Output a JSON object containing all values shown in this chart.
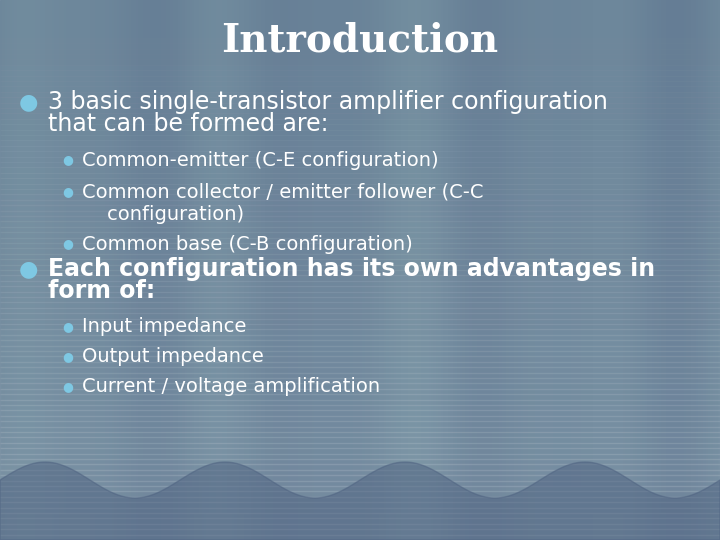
{
  "title": "Introduction",
  "title_color": "#ffffff",
  "title_fontsize": 28,
  "bullet_color": "#7ec8e3",
  "text_color": "#ffffff",
  "bg_base": [
    0.42,
    0.52,
    0.65
  ],
  "main_bullets": [
    {
      "text": "3 basic single-transistor amplifier configuration\nthat can be formed are:",
      "fontsize": 17,
      "bold": false,
      "sub_bullets": [
        "Common-emitter (C-E configuration)",
        "Common collector / emitter follower (C-C\n    configuration)",
        "Common base (C-B configuration)"
      ]
    },
    {
      "text": "Each configuration has its own advantages in\nform of:",
      "fontsize": 17,
      "bold": true,
      "sub_bullets": [
        "Input impedance",
        "Output impedance",
        "Current / voltage amplification"
      ]
    }
  ],
  "sub_bullet_fontsize": 14,
  "figsize": [
    7.2,
    5.4
  ],
  "dpi": 100
}
